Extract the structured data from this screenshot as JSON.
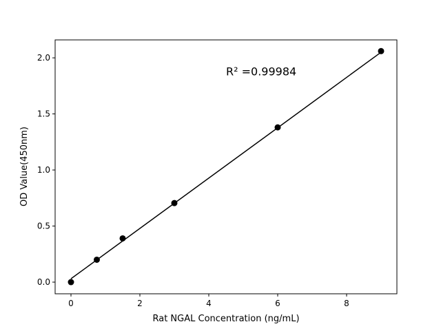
{
  "chart_data": {
    "type": "scatter",
    "title": "",
    "xlabel": "Rat NGAL Concentration (ng/mL)",
    "ylabel": "OD Value(450nm)",
    "xlim": [
      -0.46,
      9.46
    ],
    "ylim": [
      -0.104,
      2.16
    ],
    "xticks": [
      0,
      2,
      4,
      6,
      8
    ],
    "xtick_labels": [
      "0",
      "2",
      "4",
      "6",
      "8"
    ],
    "yticks": [
      0.0,
      0.5,
      1.0,
      1.5,
      2.0
    ],
    "ytick_labels": [
      "0.0",
      "0.5",
      "1.0",
      "1.5",
      "2.0"
    ],
    "grid": false,
    "series": [
      {
        "x": [
          0,
          0.75,
          1.5,
          3,
          6,
          9
        ],
        "y": [
          0.0,
          0.2,
          0.39,
          0.705,
          1.38,
          2.06
        ],
        "color": "#000000",
        "marker": "circle"
      }
    ],
    "fit_line": {
      "x": [
        0,
        9
      ],
      "y": [
        0.03,
        2.05
      ],
      "color": "#000000"
    },
    "annotation": {
      "text": "R² =0.99984",
      "x": 4.5,
      "y": 1.88
    }
  }
}
